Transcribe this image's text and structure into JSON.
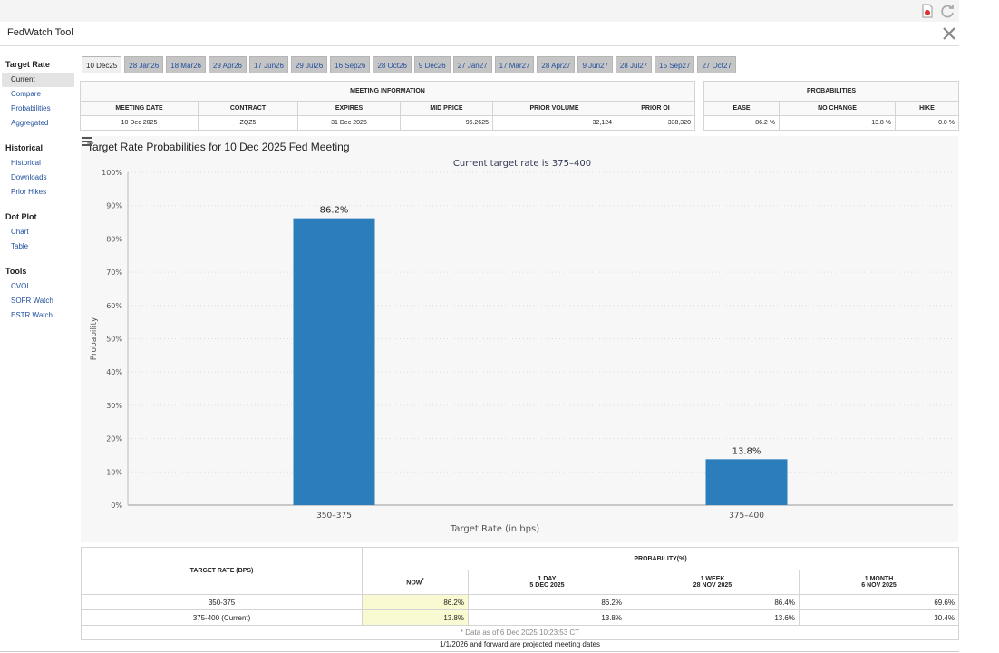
{
  "app": {
    "title": "FedWatch Tool"
  },
  "sidebar": {
    "groups": [
      {
        "heading": "Target Rate",
        "items": [
          "Current",
          "Compare",
          "Probabilities",
          "Aggregated"
        ]
      },
      {
        "heading": "Historical",
        "items": [
          "Historical",
          "Downloads",
          "Prior Hikes"
        ]
      },
      {
        "heading": "Dot Plot",
        "items": [
          "Chart",
          "Table"
        ]
      },
      {
        "heading": "Tools",
        "items": [
          "CVOL",
          "SOFR Watch",
          "ESTR Watch"
        ]
      }
    ]
  },
  "tabs": [
    "10 Dec25",
    "28 Jan26",
    "18 Mar26",
    "29 Apr26",
    "17 Jun26",
    "29 Jul26",
    "16 Sep26",
    "28 Oct26",
    "9 Dec26",
    "27 Jan27",
    "17 Mar27",
    "28 Apr27",
    "9 Jun27",
    "28 Jul27",
    "15 Sep27",
    "27 Oct27"
  ],
  "meeting_info": {
    "group_label": "MEETING INFORMATION",
    "headers": [
      "MEETING DATE",
      "CONTRACT",
      "EXPIRES",
      "MID PRICE",
      "PRIOR VOLUME",
      "PRIOR OI"
    ],
    "values": [
      "10 Dec 2025",
      "ZQZ5",
      "31 Dec 2025",
      "96.2625",
      "32,124",
      "338,320"
    ]
  },
  "probabilities": {
    "group_label": "PROBABILITIES",
    "headers": [
      "EASE",
      "NO CHANGE",
      "HIKE"
    ],
    "values": [
      "86.2 %",
      "13.8 %",
      "0.0 %"
    ]
  },
  "chart_data": {
    "type": "bar",
    "title": "Target Rate Probabilities for 10 Dec 2025 Fed Meeting",
    "subtitle": "Current target rate is 375–400",
    "categories": [
      "350–375",
      "375–400"
    ],
    "values": [
      86.2,
      13.8
    ],
    "value_labels": [
      "86.2%",
      "13.8%"
    ],
    "xlabel": "Target Rate (in bps)",
    "ylabel": "Probability",
    "ylim": [
      0,
      100
    ],
    "yticks": [
      0,
      10,
      20,
      30,
      40,
      50,
      60,
      70,
      80,
      90,
      100
    ],
    "ytick_labels": [
      "0%",
      "10%",
      "20%",
      "30%",
      "40%",
      "50%",
      "60%",
      "70%",
      "80%",
      "90%",
      "100%"
    ],
    "bar_color": "#2b7ebb",
    "grid": true
  },
  "prob_table": {
    "header_left": "TARGET RATE (BPS)",
    "header_group": "PROBABILITY(%)",
    "col_now": "NOW",
    "col_now_mark": "*",
    "cols": [
      {
        "line1": "1 DAY",
        "line2": "5 DEC 2025"
      },
      {
        "line1": "1 WEEK",
        "line2": "28 NOV 2025"
      },
      {
        "line1": "1 MONTH",
        "line2": "6 NOV 2025"
      }
    ],
    "rows": [
      {
        "rate": "350-375",
        "now": "86.2%",
        "day": "86.2%",
        "week": "86.4%",
        "month": "69.6%"
      },
      {
        "rate": "375-400 (Current)",
        "now": "13.8%",
        "day": "13.8%",
        "week": "13.6%",
        "month": "30.4%"
      }
    ],
    "note": "* Data as of 6 Dec 2025 10:23:53 CT"
  },
  "footer": "1/1/2026 and forward are projected meeting dates",
  "colors": {
    "link": "#1f4e9c",
    "highlight": "#fafad2",
    "tab_bg": "#c5c5c5"
  }
}
